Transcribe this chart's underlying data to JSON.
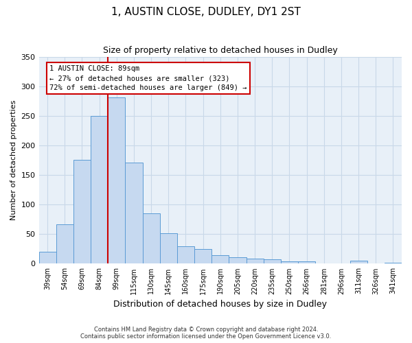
{
  "title": "1, AUSTIN CLOSE, DUDLEY, DY1 2ST",
  "subtitle": "Size of property relative to detached houses in Dudley",
  "xlabel": "Distribution of detached houses by size in Dudley",
  "ylabel": "Number of detached properties",
  "bar_labels": [
    "39sqm",
    "54sqm",
    "69sqm",
    "84sqm",
    "99sqm",
    "115sqm",
    "130sqm",
    "145sqm",
    "160sqm",
    "175sqm",
    "190sqm",
    "205sqm",
    "220sqm",
    "235sqm",
    "250sqm",
    "266sqm",
    "281sqm",
    "296sqm",
    "311sqm",
    "326sqm",
    "341sqm"
  ],
  "bar_values": [
    20,
    67,
    176,
    250,
    282,
    171,
    85,
    52,
    30,
    25,
    15,
    11,
    9,
    7,
    4,
    4,
    1,
    0,
    5,
    0,
    2
  ],
  "bar_color": "#c6d9f0",
  "bar_edgecolor": "#5b9bd5",
  "vline_color": "#cc0000",
  "ylim": [
    0,
    350
  ],
  "yticks": [
    0,
    50,
    100,
    150,
    200,
    250,
    300,
    350
  ],
  "annotation_line1": "1 AUSTIN CLOSE: 89sqm",
  "annotation_line2": "← 27% of detached houses are smaller (323)",
  "annotation_line3": "72% of semi-detached houses are larger (849) →",
  "annotation_box_color": "#cc0000",
  "footer_line1": "Contains HM Land Registry data © Crown copyright and database right 2024.",
  "footer_line2": "Contains public sector information licensed under the Open Government Licence v3.0.",
  "background_color": "#ffffff",
  "plot_bg_color": "#e8f0f8",
  "grid_color": "#c8d8e8"
}
